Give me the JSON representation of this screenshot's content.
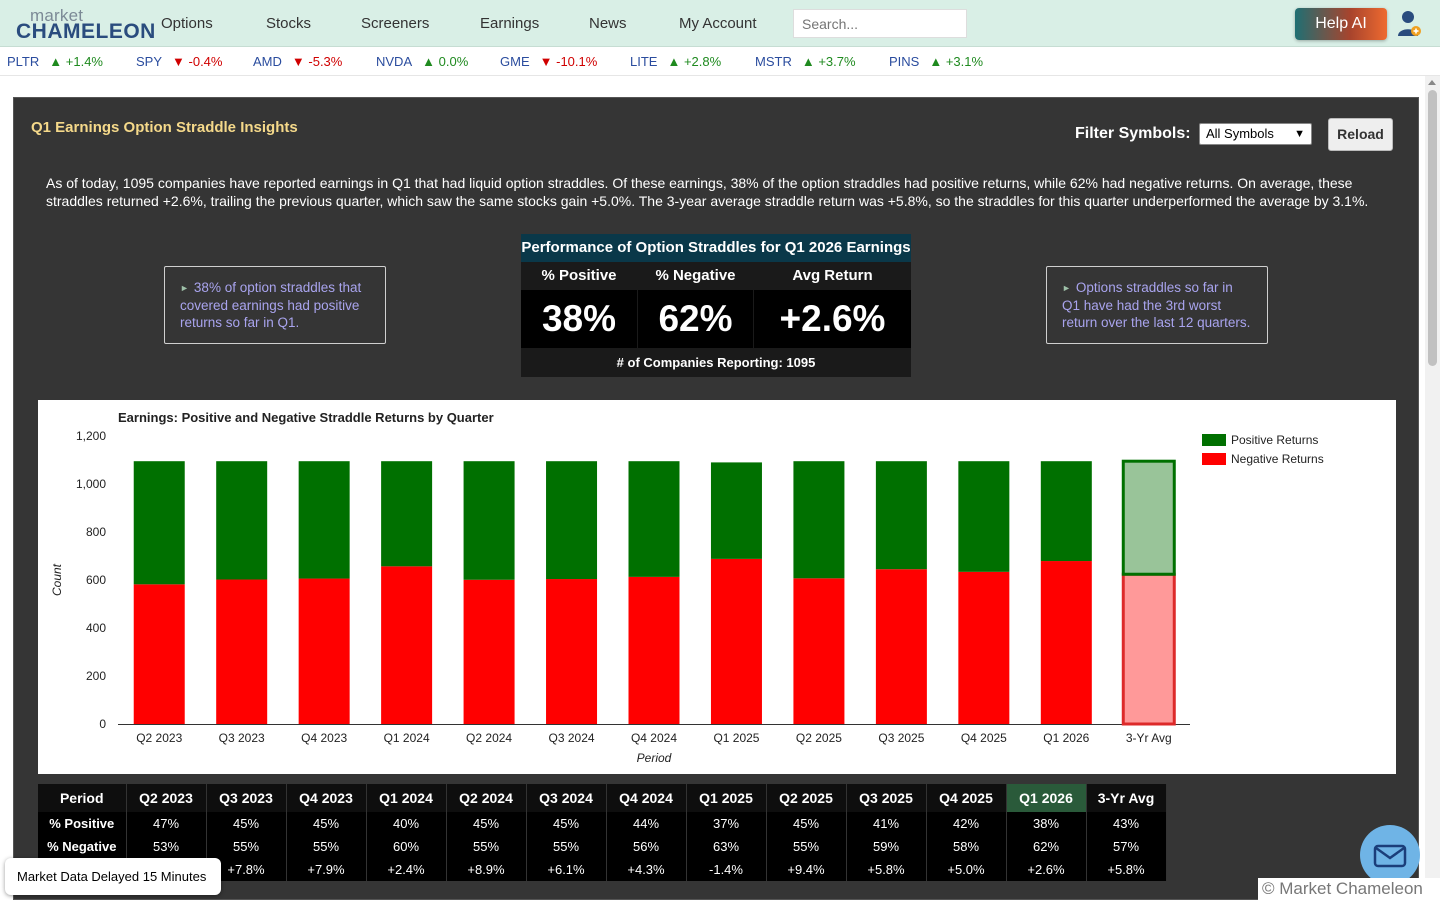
{
  "nav": {
    "logo_top": "market",
    "logo_bottom": "CHAMELEON",
    "items": [
      "Options",
      "Stocks",
      "Screeners",
      "Earnings",
      "News",
      "My Account"
    ],
    "search_placeholder": "Search...",
    "help_label": "Help AI"
  },
  "ticker": [
    {
      "symbol": "PLTR",
      "change": "+1.4%",
      "dir": "up"
    },
    {
      "symbol": "SPY",
      "change": "-0.4%",
      "dir": "down"
    },
    {
      "symbol": "AMD",
      "change": "-5.3%",
      "dir": "down"
    },
    {
      "symbol": "NVDA",
      "change": "0.0%",
      "dir": "up"
    },
    {
      "symbol": "GME",
      "change": "-10.1%",
      "dir": "down"
    },
    {
      "symbol": "LITE",
      "change": "+2.8%",
      "dir": "up"
    },
    {
      "symbol": "MSTR",
      "change": "+3.7%",
      "dir": "up"
    },
    {
      "symbol": "PINS",
      "change": "+3.1%",
      "dir": "up"
    }
  ],
  "panel": {
    "title": "Q1 Earnings Option Straddle Insights",
    "filter_label": "Filter Symbols:",
    "filter_value": "All Symbols",
    "reload_label": "Reload",
    "summary": "As of today, 1095 companies have reported earnings in Q1 that had liquid option straddles. Of these earnings, 38% of the option straddles had positive returns, while 62% had negative returns. On average, these straddles returned +2.6%, trailing the previous quarter, which saw the same stocks gain +5.0%. The 3-year average straddle return was +5.8%, so the straddles for this quarter underperformed the average by 3.1%.",
    "insight_left": "38% of option straddles that covered earnings had positive returns so far in Q1.",
    "insight_right": "Options straddles so far in Q1 have had the 3rd worst return over the last 12 quarters."
  },
  "performance": {
    "title": "Performance of Option Straddles for Q1 2026 Earnings",
    "col_positive": "% Positive",
    "col_negative": "% Negative",
    "col_avg": "Avg Return",
    "val_positive": "38%",
    "val_negative": "62%",
    "val_avg": "+2.6%",
    "footer": "# of Companies Reporting: 1095"
  },
  "colors": {
    "positive": "#007000",
    "negative": "#ff0000",
    "avg_positive": "#99c499",
    "avg_negative": "#ff9999",
    "avg_border_pos": "#007000",
    "avg_border_neg": "#dd2a2a"
  },
  "chart_data": {
    "type": "bar",
    "stacked": true,
    "title": "Earnings: Positive and Negative Straddle Returns by Quarter",
    "xlabel": "Period",
    "ylabel": "Count",
    "ylim": [
      0,
      1200
    ],
    "yticks": [
      "0",
      "200",
      "400",
      "600",
      "800",
      "1,000",
      "1,200"
    ],
    "ytick_values": [
      0,
      200,
      400,
      600,
      800,
      1000,
      1200
    ],
    "legend_position": "top-right",
    "categories": [
      "Q2 2023",
      "Q3 2023",
      "Q4 2023",
      "Q1 2024",
      "Q2 2024",
      "Q3 2024",
      "Q4 2024",
      "Q1 2025",
      "Q2 2025",
      "Q3 2025",
      "Q4 2025",
      "Q1 2026",
      "3-Yr Avg"
    ],
    "series": [
      {
        "name": "Positive Returns",
        "values": [
          513,
          493,
          489,
          438,
          494,
          491,
          482,
          402,
          488,
          450,
          461,
          416,
          471
        ]
      },
      {
        "name": "Negative Returns",
        "values": [
          582,
          602,
          606,
          657,
          601,
          604,
          613,
          688,
          607,
          645,
          634,
          679,
          624
        ]
      }
    ]
  },
  "table": {
    "header": [
      "Period",
      "Q2 2023",
      "Q3 2023",
      "Q4 2023",
      "Q1 2024",
      "Q2 2024",
      "Q3 2024",
      "Q4 2024",
      "Q1 2025",
      "Q2 2025",
      "Q3 2025",
      "Q4 2025",
      "Q1 2026",
      "3-Yr Avg"
    ],
    "rows": [
      [
        "% Positive",
        "47%",
        "45%",
        "45%",
        "40%",
        "45%",
        "45%",
        "44%",
        "37%",
        "45%",
        "41%",
        "42%",
        "38%",
        "43%"
      ],
      [
        "% Negative",
        "53%",
        "55%",
        "55%",
        "60%",
        "55%",
        "55%",
        "56%",
        "63%",
        "55%",
        "59%",
        "58%",
        "62%",
        "57%"
      ],
      [
        "",
        "",
        "+7.8%",
        "+7.9%",
        "+2.4%",
        "+8.9%",
        "+6.1%",
        "+4.3%",
        "-1.4%",
        "+9.4%",
        "+5.8%",
        "+5.0%",
        "+2.6%",
        "+5.8%"
      ]
    ],
    "highlight_col": 12
  },
  "footer": {
    "delay_notice": "Market Data Delayed 15 Minutes",
    "copyright": "© Market Chameleon"
  }
}
